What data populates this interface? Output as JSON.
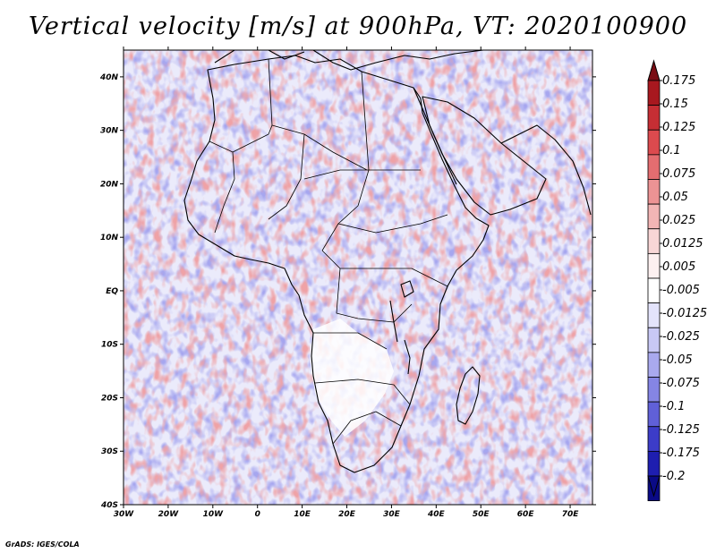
{
  "title": "Vertical velocity [m/s] at 900hPa, VT: 2020100900",
  "credit": "GrADS: IGES/COLA",
  "map": {
    "region": "Africa",
    "lat_labels": [
      "40N",
      "30N",
      "20N",
      "10N",
      "EQ",
      "10S",
      "20S",
      "30S",
      "40S"
    ],
    "lat_values": [
      40,
      30,
      20,
      10,
      0,
      -10,
      -20,
      -30,
      -40
    ],
    "lon_labels": [
      "30W",
      "20W",
      "10W",
      "0",
      "10E",
      "20E",
      "30E",
      "40E",
      "50E",
      "60E",
      "70E"
    ],
    "lon_values": [
      -30,
      -20,
      -10,
      0,
      10,
      20,
      30,
      40,
      50,
      60,
      70
    ],
    "lon_range": [
      -30,
      75
    ],
    "lat_range": [
      -40,
      45
    ]
  },
  "colorbar": {
    "labels": [
      "0.175",
      "0.15",
      "0.125",
      "0.1",
      "0.075",
      "0.05",
      "0.025",
      "0.0125",
      "0.005",
      "-0.005",
      "-0.0125",
      "-0.025",
      "-0.05",
      "-0.075",
      "-0.1",
      "-0.125",
      "-0.175",
      "-0.2"
    ],
    "colors": [
      "#7a0d14",
      "#a8181f",
      "#c62e34",
      "#dc4a4e",
      "#e46d70",
      "#ec9394",
      "#f2b5b5",
      "#f8d6d6",
      "#fdf0f0",
      "#ffffff",
      "#e3e3fb",
      "#c8c8f5",
      "#a9a9ee",
      "#8585e4",
      "#6060d8",
      "#3c3cc8",
      "#1e1eb0",
      "#0a0a86"
    ]
  },
  "palette": {
    "red": "#d7585c",
    "blue": "#5a5ad8",
    "land_white": "#ffffff",
    "border": "#000000"
  }
}
